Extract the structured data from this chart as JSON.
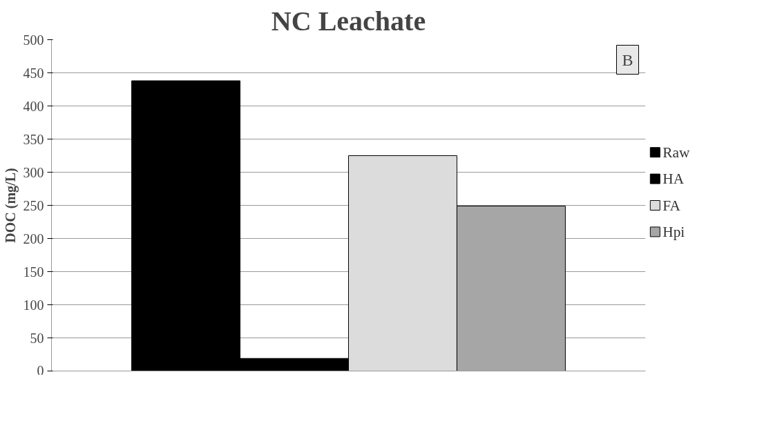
{
  "chart_data": {
    "type": "bar",
    "title": "NC Leachate",
    "ylabel": "DOC (mg/L)",
    "categories": [
      null
    ],
    "series": [
      {
        "name": "Raw",
        "color": "#000000",
        "values": [
          438
        ]
      },
      {
        "name": "HA",
        "color": "#000000",
        "values": [
          19
        ]
      },
      {
        "name": "FA",
        "color": "#dcdcdc",
        "values": [
          325
        ]
      },
      {
        "name": "Hpi",
        "color": "#a6a6a6",
        "values": [
          249
        ]
      }
    ],
    "ylim": [
      0,
      500
    ],
    "yticks": [
      0,
      50,
      100,
      150,
      200,
      250,
      300,
      350,
      400,
      450,
      500
    ],
    "grid": "y",
    "legend": "right",
    "annotations": [
      "B"
    ]
  }
}
